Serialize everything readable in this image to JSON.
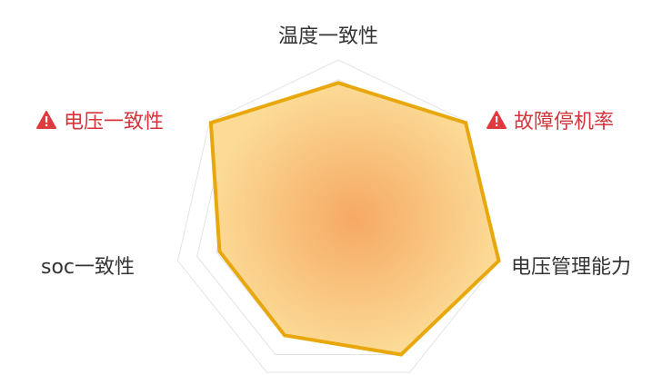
{
  "chart_data": {
    "type": "radar",
    "title": "",
    "indicators": [
      {
        "name": "温度一致性",
        "value": 86,
        "warning": false
      },
      {
        "name": "故障停机率",
        "value": 99,
        "warning": true
      },
      {
        "name": "电压管理能力",
        "value": 100,
        "warning": false
      },
      {
        "name": "",
        "value": 88,
        "warning": false
      },
      {
        "name": "",
        "value": 75,
        "warning": false
      },
      {
        "name": "soc一致性",
        "value": 74,
        "warning": false
      },
      {
        "name": "电压一致性",
        "value": 99,
        "warning": true
      }
    ],
    "max": 100,
    "colors": {
      "line": "#e8a80c",
      "fill_center": "#f5a45c",
      "fill_edge": "#fbd990",
      "grid": "#e3e3e3",
      "label": "#333333",
      "warning_label": "#d4343b",
      "warning_icon": "#e03a3e"
    }
  }
}
